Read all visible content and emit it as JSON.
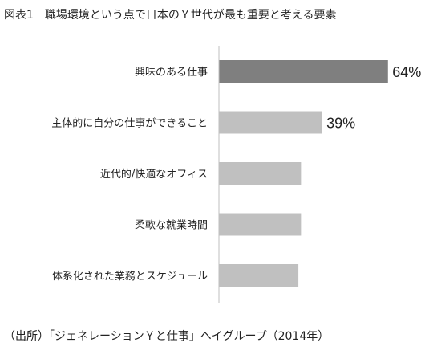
{
  "title": "図表1　職場環境という点で日本のＹ世代が最も重要と考える要素",
  "source": "（出所）「ジェネレーションＹと仕事」ヘイグループ（2014年）",
  "chart_data": {
    "type": "bar",
    "orientation": "horizontal",
    "categories": [
      "興味のある仕事",
      "主体的に自分の仕事ができること",
      "近代的/快適なオフィス",
      "柔軟な就業時間",
      "体系化された業務とスケジュール"
    ],
    "values": [
      64,
      39,
      31,
      31,
      30
    ],
    "data_labels": [
      "64%",
      "39%",
      null,
      null,
      null
    ],
    "unit": "%",
    "xlim": [
      0,
      70
    ],
    "grid": false,
    "colors": {
      "highlight": "#7f7f7f",
      "default": "#c0c0c0",
      "axis": "#bfbfbf"
    }
  }
}
